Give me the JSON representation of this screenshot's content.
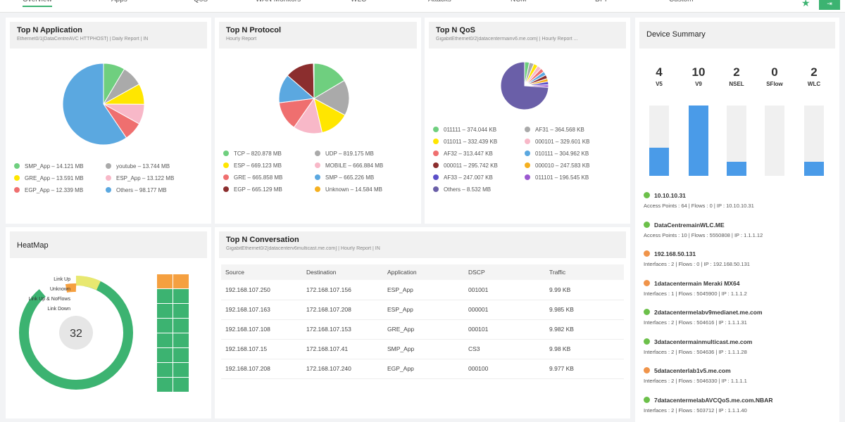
{
  "tabs": [
    {
      "label": "Overview",
      "active": true
    },
    {
      "label": "Apps"
    },
    {
      "label": "QoS"
    },
    {
      "label": "WAN Monitors"
    },
    {
      "label": "WLC"
    },
    {
      "label": "Attacks"
    },
    {
      "label": "NCM"
    },
    {
      "label": "DPI"
    },
    {
      "label": "Custom"
    }
  ],
  "colors": {
    "accent": "#3cb371",
    "green": "#6fcf7f",
    "gray": "#aaaaaa",
    "yellow": "#ffe600",
    "pink": "#f8b8c8",
    "red": "#ef6f6f",
    "blue": "#5ba8e0",
    "darkred": "#8b2e2e",
    "orange": "#f5b020",
    "purple": "#6a5fa8",
    "violet": "#9b59d0",
    "indigo": "#5b4fc8"
  },
  "top_app": {
    "title": "Top N Application",
    "subtitle": "Ethernet0/1[DataCentreAVC HTTPHOST] | Daily Report | IN",
    "chart_data": {
      "type": "pie",
      "unit": "MB",
      "slices": [
        {
          "name": "SMP_App",
          "value": 14.121,
          "label": "SMP_App – 14.121 MB",
          "color": "#6fcf7f"
        },
        {
          "name": "youtube",
          "value": 13.744,
          "label": "youtube – 13.744 MB",
          "color": "#aaaaaa"
        },
        {
          "name": "GRE_App",
          "value": 13.591,
          "label": "GRE_App – 13.591 MB",
          "color": "#ffe600"
        },
        {
          "name": "ESP_App",
          "value": 13.122,
          "label": "ESP_App – 13.122 MB",
          "color": "#f8b8c8"
        },
        {
          "name": "EGP_App",
          "value": 12.339,
          "label": "EGP_App – 12.339 MB",
          "color": "#ef6f6f"
        },
        {
          "name": "Others",
          "value": 98.177,
          "label": "Others – 98.177 MB",
          "color": "#5ba8e0"
        }
      ]
    }
  },
  "top_protocol": {
    "title": "Top N Protocol",
    "subtitle": "Hourly Report",
    "chart_data": {
      "type": "pie",
      "unit": "MB",
      "slices": [
        {
          "name": "TCP",
          "value": 820.878,
          "label": "TCP – 820.878 MB",
          "color": "#6fcf7f"
        },
        {
          "name": "UDP",
          "value": 819.175,
          "label": "UDP – 819.175 MB",
          "color": "#aaaaaa"
        },
        {
          "name": "ESP",
          "value": 669.123,
          "label": "ESP – 669.123 MB",
          "color": "#ffe600"
        },
        {
          "name": "MOBILE",
          "value": 666.884,
          "label": "MOBILE – 666.884 MB",
          "color": "#f8b8c8"
        },
        {
          "name": "GRE",
          "value": 665.858,
          "label": "GRE – 665.858 MB",
          "color": "#ef6f6f"
        },
        {
          "name": "SMP",
          "value": 665.226,
          "label": "SMP – 665.226 MB",
          "color": "#5ba8e0"
        },
        {
          "name": "EGP",
          "value": 665.129,
          "label": "EGP – 665.129 MB",
          "color": "#8b2e2e"
        },
        {
          "name": "Unknown",
          "value": 14.584,
          "label": "Unknown – 14.584 MB",
          "color": "#f5b020"
        }
      ]
    }
  },
  "top_qos": {
    "title": "Top N QoS",
    "subtitle": "GigabitEthernet0/2[datacentermainv6.me.com] | Hourly Report ...",
    "chart_data": {
      "type": "pie",
      "unit": "KB",
      "slices": [
        {
          "name": "011111",
          "value": 374.044,
          "label": "011111 – 374.044 KB",
          "color": "#6fcf7f"
        },
        {
          "name": "AF31",
          "value": 364.568,
          "label": "AF31 – 364.568 KB",
          "color": "#aaaaaa"
        },
        {
          "name": "011011",
          "value": 332.439,
          "label": "011011 – 332.439 KB",
          "color": "#ffe600"
        },
        {
          "name": "000101",
          "value": 329.601,
          "label": "000101 – 329.601 KB",
          "color": "#f8b8c8"
        },
        {
          "name": "AF32",
          "value": 313.447,
          "label": "AF32 – 313.447 KB",
          "color": "#ef6f6f"
        },
        {
          "name": "010111",
          "value": 304.962,
          "label": "010111 – 304.962 KB",
          "color": "#5ba8e0"
        },
        {
          "name": "000011",
          "value": 295.742,
          "label": "000011 – 295.742 KB",
          "color": "#8b2e2e"
        },
        {
          "name": "000010",
          "value": 247.583,
          "label": "000010 – 247.583 KB",
          "color": "#f5b020"
        },
        {
          "name": "AF33",
          "value": 247.007,
          "label": "AF33 – 247.007 KB",
          "color": "#5b4fc8"
        },
        {
          "name": "011101",
          "value": 196.545,
          "label": "011101 – 196.545 KB",
          "color": "#9b59d0"
        },
        {
          "name": "Others",
          "value": 8532,
          "label": "Others – 8.532 MB",
          "color": "#6a5fa8"
        }
      ]
    }
  },
  "device_summary": {
    "title": "Device Summary",
    "chart_data": {
      "type": "bar",
      "categories": [
        "V5",
        "V9",
        "NSEL",
        "SFlow",
        "WLC"
      ],
      "values": [
        4,
        10,
        2,
        0,
        2
      ],
      "ylim": [
        0,
        10
      ]
    },
    "devices": [
      {
        "name": "10.10.10.31",
        "status": "up",
        "details": "Access Points : 64  |  Flows : 0  |  IP : 10.10.10.31"
      },
      {
        "name": "DataCentremainWLC.ME",
        "status": "up",
        "details": "Access Points : 10  |  Flows : 5550808  |  IP : 1.1.1.12"
      },
      {
        "name": "192.168.50.131",
        "status": "warning",
        "details": "Interfaces : 2  |  Flows : 0  |  IP : 192.168.50.131"
      },
      {
        "name": "1datacentermain Meraki MX64",
        "status": "warning",
        "details": "Interfaces : 1  |  Flows : 5045900  |  IP : 1.1.1.2"
      },
      {
        "name": "2datacentermelabv9medianet.me.com",
        "status": "up",
        "details": "Interfaces : 2  |  Flows : 504616  |  IP : 1.1.1.31"
      },
      {
        "name": "3datacentermainmulticast.me.com",
        "status": "up",
        "details": "Interfaces : 2  |  Flows : 504636  |  IP : 1.1.1.28"
      },
      {
        "name": "5datacenterlab1v5.me.com",
        "status": "warning",
        "details": "Interfaces : 2  |  Flows : 5046330  |  IP : 1.1.1.1"
      },
      {
        "name": "7datacentermelabAVCQoS.me.com.NBAR",
        "status": "up",
        "details": "Interfaces : 2  |  Flows : 503712  |  IP : 1.1.1.40"
      }
    ]
  },
  "heatmap": {
    "title": "HeatMap",
    "total": "32",
    "legend": [
      "Link Up",
      "Unknown",
      "Link Up & NoFlows",
      "Link Down"
    ]
  },
  "conversation": {
    "title": "Top N Conversation",
    "subtitle": "GigabitEthernet0/2[datacenterv6multicast.me.com] | Hourly Report | IN",
    "columns": [
      "Source",
      "Destination",
      "Application",
      "DSCP",
      "Traffic"
    ],
    "rows": [
      [
        "192.168.107.250",
        "172.168.107.156",
        "ESP_App",
        "001001",
        "9.99 KB"
      ],
      [
        "192.168.107.163",
        "172.168.107.208",
        "ESP_App",
        "000001",
        "9.985 KB"
      ],
      [
        "192.168.107.108",
        "172.168.107.153",
        "GRE_App",
        "000101",
        "9.982 KB"
      ],
      [
        "192.168.107.15",
        "172.168.107.41",
        "SMP_App",
        "CS3",
        "9.98 KB"
      ],
      [
        "192.168.107.208",
        "172.168.107.240",
        "EGP_App",
        "000100",
        "9.977 KB"
      ]
    ]
  }
}
